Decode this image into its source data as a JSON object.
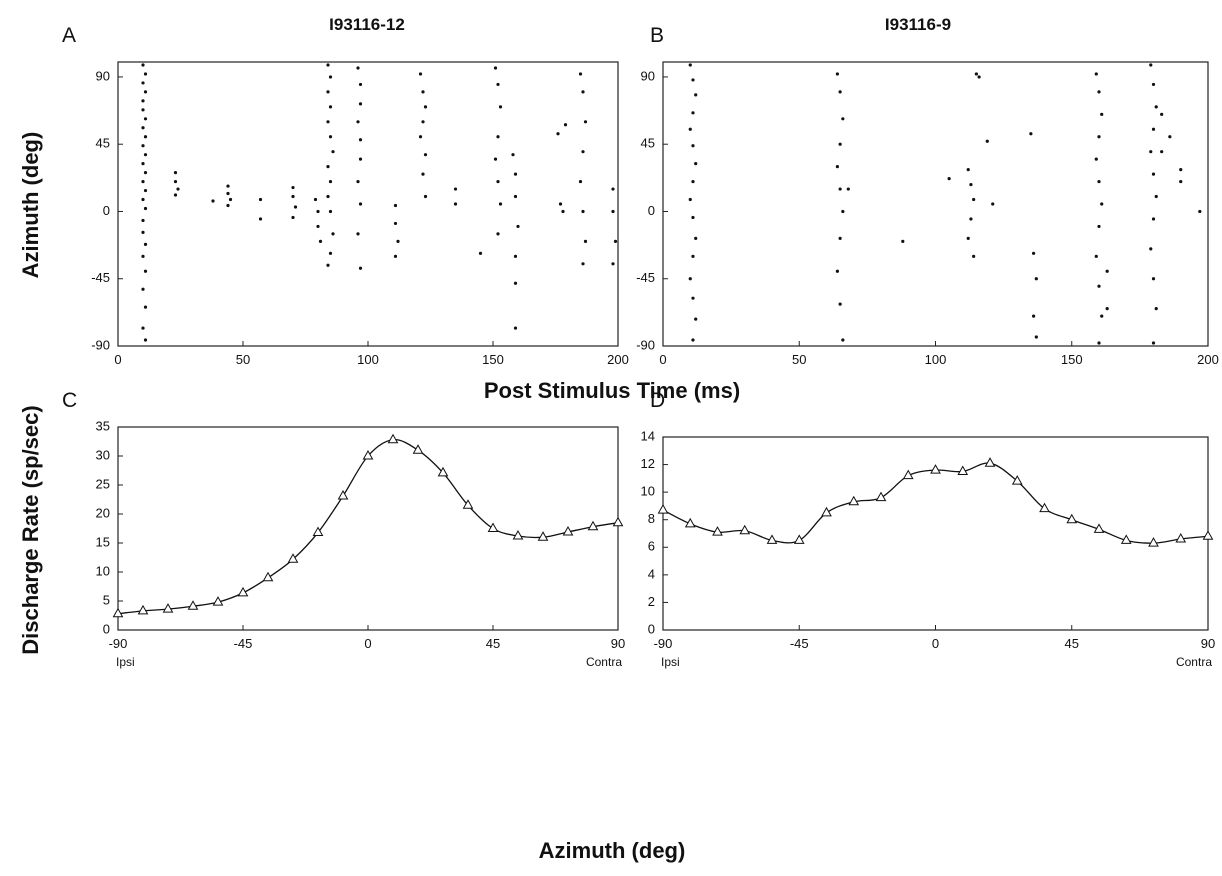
{
  "chart_data": [
    {
      "type": "scatter",
      "panel": "A",
      "title": "I93116-12",
      "ylabel": "Azimuth (deg)",
      "xlabel": "Post Stimulus Time (ms)",
      "color": "#111",
      "xlim": [
        0,
        200
      ],
      "xticks": [
        0,
        50,
        100,
        150,
        200
      ],
      "ylim": [
        -90,
        100
      ],
      "yticks": [
        -90,
        -45,
        0,
        45,
        90
      ],
      "series": [
        {
          "x": [
            10,
            11,
            10,
            11,
            10,
            10,
            11,
            10,
            11,
            10,
            11,
            10,
            11,
            10,
            11,
            10,
            11,
            10,
            10,
            11,
            10,
            11,
            10,
            11,
            10,
            11
          ],
          "values": [
            98,
            92,
            86,
            80,
            74,
            68,
            62,
            56,
            50,
            44,
            38,
            32,
            26,
            20,
            14,
            8,
            2,
            -6,
            -14,
            -22,
            -30,
            -40,
            -52,
            -64,
            -78,
            -86
          ]
        },
        {
          "x": [
            23,
            23,
            24,
            23,
            38,
            44,
            44,
            45,
            44,
            57,
            57,
            70,
            70,
            71,
            70
          ],
          "values": [
            26,
            20,
            15,
            11,
            7,
            17,
            12,
            8,
            4,
            8,
            -5,
            16,
            10,
            3,
            -4
          ]
        },
        {
          "x": [
            79,
            80,
            80,
            81,
            84,
            85,
            84,
            85,
            84,
            85,
            86,
            84,
            85,
            84,
            85,
            86,
            85,
            84
          ],
          "values": [
            8,
            0,
            -10,
            -20,
            98,
            90,
            80,
            70,
            60,
            50,
            40,
            30,
            20,
            10,
            0,
            -15,
            -28,
            -36
          ]
        },
        {
          "x": [
            96,
            97,
            97,
            96,
            97,
            97,
            96,
            97,
            96,
            97,
            111,
            111,
            112,
            111
          ],
          "values": [
            96,
            85,
            72,
            60,
            48,
            35,
            20,
            5,
            -15,
            -38,
            4,
            -8,
            -20,
            -30
          ]
        },
        {
          "x": [
            121,
            122,
            123,
            122,
            121,
            123,
            122,
            123,
            135,
            135,
            145
          ],
          "values": [
            92,
            80,
            70,
            60,
            50,
            38,
            25,
            10,
            15,
            5,
            -28
          ]
        },
        {
          "x": [
            151,
            152,
            153,
            152,
            151,
            152,
            153,
            152,
            158,
            159,
            159,
            160,
            159,
            159,
            159
          ],
          "values": [
            96,
            85,
            70,
            50,
            35,
            20,
            5,
            -15,
            38,
            25,
            10,
            -10,
            -30,
            -48,
            -78
          ]
        },
        {
          "x": [
            176,
            177,
            178,
            179,
            185,
            186,
            187,
            186,
            185,
            186,
            187,
            186,
            198,
            198,
            199,
            198
          ],
          "values": [
            52,
            5,
            0,
            58,
            92,
            80,
            60,
            40,
            20,
            0,
            -20,
            -35,
            15,
            0,
            -20,
            -35
          ]
        }
      ]
    },
    {
      "type": "scatter",
      "panel": "B",
      "title": "I93116-9",
      "color": "#111",
      "xlim": [
        0,
        200
      ],
      "xticks": [
        0,
        50,
        100,
        150,
        200
      ],
      "ylim": [
        -90,
        100
      ],
      "yticks": [
        -90,
        -45,
        0,
        45,
        90
      ],
      "series": [
        {
          "x": [
            10,
            11,
            12,
            11,
            10,
            11,
            12,
            11,
            10,
            11,
            12,
            11,
            10,
            11,
            12,
            11
          ],
          "values": [
            98,
            88,
            78,
            66,
            55,
            44,
            32,
            20,
            8,
            -4,
            -18,
            -30,
            -45,
            -58,
            -72,
            -86
          ]
        },
        {
          "x": [
            64,
            65,
            66,
            65,
            64,
            65,
            66,
            65,
            64,
            65,
            66,
            68,
            88,
            105
          ],
          "values": [
            92,
            80,
            62,
            45,
            30,
            15,
            0,
            -18,
            -40,
            -62,
            -86,
            15,
            -20,
            22
          ]
        },
        {
          "x": [
            112,
            113,
            114,
            113,
            112,
            114,
            115,
            116,
            119,
            121,
            135,
            136,
            137,
            136,
            137
          ],
          "values": [
            28,
            18,
            8,
            -5,
            -18,
            -30,
            92,
            90,
            47,
            5,
            52,
            -28,
            -45,
            -70,
            -84
          ]
        },
        {
          "x": [
            159,
            160,
            161,
            160,
            159,
            160,
            161,
            160,
            159,
            160,
            161,
            160,
            163,
            163
          ],
          "values": [
            92,
            80,
            65,
            50,
            35,
            20,
            5,
            -10,
            -30,
            -50,
            -70,
            -88,
            -40,
            -65
          ]
        },
        {
          "x": [
            179,
            180,
            181,
            180,
            179,
            180,
            181,
            180,
            179,
            180,
            181,
            180,
            183,
            183,
            186,
            190,
            190,
            197
          ],
          "values": [
            98,
            85,
            70,
            55,
            40,
            25,
            10,
            -5,
            -25,
            -45,
            -65,
            -88,
            65,
            40,
            50,
            28,
            20,
            0
          ]
        }
      ]
    },
    {
      "type": "line",
      "panel": "C",
      "ylabel": "Discharge Rate (sp/sec)",
      "xlabel": "Azimuth (deg)",
      "color": "#111",
      "xend_labels": [
        "Ipsi",
        "Contra"
      ],
      "xlim": [
        -90,
        90
      ],
      "xticks": [
        -90,
        -45,
        0,
        45,
        90
      ],
      "ylim": [
        0,
        35
      ],
      "yticks": [
        0,
        5,
        10,
        15,
        20,
        25,
        30,
        35
      ],
      "x": [
        -90,
        -81,
        -72,
        -63,
        -54,
        -45,
        -36,
        -27,
        -18,
        -9,
        0,
        9,
        18,
        27,
        36,
        45,
        54,
        63,
        72,
        81,
        90
      ],
      "values": [
        2.8,
        3.3,
        3.6,
        4.1,
        4.8,
        6.4,
        9.0,
        12.2,
        16.8,
        23.1,
        30.0,
        32.8,
        31.0,
        27.1,
        21.5,
        17.5,
        16.2,
        16.0,
        16.9,
        17.8,
        18.5
      ]
    },
    {
      "type": "line",
      "panel": "D",
      "color": "#111",
      "xend_labels": [
        "Ipsi",
        "Contra"
      ],
      "xlim": [
        -90,
        90
      ],
      "xticks": [
        -90,
        -45,
        0,
        45,
        90
      ],
      "ylim": [
        0,
        14
      ],
      "yticks": [
        0,
        2,
        4,
        6,
        8,
        10,
        12,
        14
      ],
      "x": [
        -90,
        -81,
        -72,
        -63,
        -54,
        -45,
        -36,
        -27,
        -18,
        -9,
        0,
        9,
        18,
        27,
        36,
        45,
        54,
        63,
        72,
        81,
        90
      ],
      "values": [
        8.7,
        7.7,
        7.1,
        7.2,
        6.5,
        6.5,
        8.5,
        9.3,
        9.6,
        11.2,
        11.6,
        11.5,
        12.1,
        10.8,
        8.8,
        8.0,
        7.3,
        6.5,
        6.3,
        6.6,
        6.8
      ]
    }
  ]
}
